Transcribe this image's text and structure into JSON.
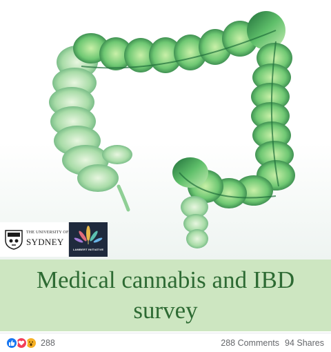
{
  "post": {
    "title": "Medical cannabis and IBD survey",
    "logos": {
      "usyd_small": "THE UNIVERSITY OF",
      "usyd_big": "SYDNEY",
      "lambert_label": "LAMBERT INITIATIVE"
    },
    "colors": {
      "title_band": "#cde6c1",
      "title_text": "#2d6a33",
      "colon_dark": "#1f6e3a",
      "colon_light": "#9fe06b"
    }
  },
  "reactions": {
    "types": [
      "like-icon",
      "love-icon",
      "wow-icon"
    ],
    "count": "288",
    "comments": "288 Comments",
    "shares": "94 Shares"
  }
}
